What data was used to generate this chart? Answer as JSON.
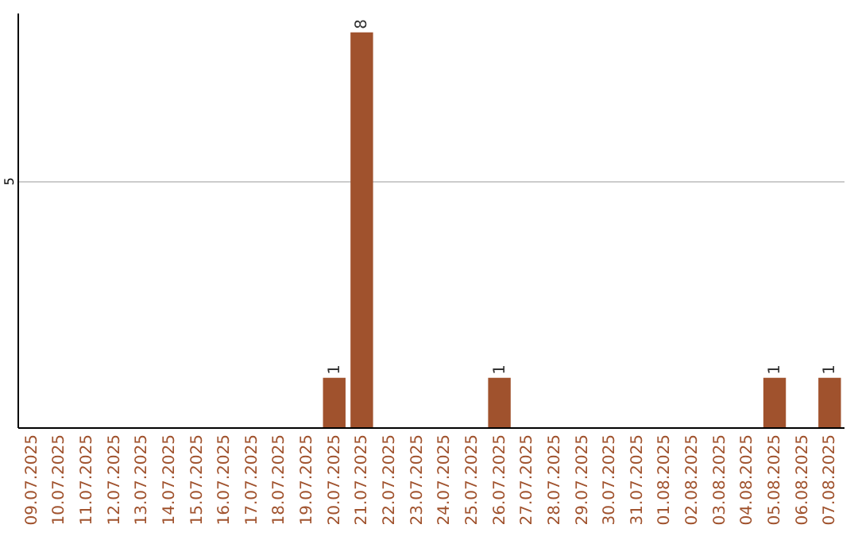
{
  "chart_data": {
    "type": "bar",
    "categories": [
      "09.07.2025",
      "10.07.2025",
      "11.07.2025",
      "12.07.2025",
      "13.07.2025",
      "14.07.2025",
      "15.07.2025",
      "16.07.2025",
      "17.07.2025",
      "18.07.2025",
      "19.07.2025",
      "20.07.2025",
      "21.07.2025",
      "22.07.2025",
      "23.07.2025",
      "24.07.2025",
      "25.07.2025",
      "26.07.2025",
      "27.07.2025",
      "28.07.2025",
      "29.07.2025",
      "30.07.2025",
      "31.07.2025",
      "01.08.2025",
      "02.08.2025",
      "03.08.2025",
      "04.08.2025",
      "05.08.2025",
      "06.08.2025",
      "07.08.2025"
    ],
    "values": [
      0,
      0,
      0,
      0,
      0,
      0,
      0,
      0,
      0,
      0,
      0,
      1,
      8,
      0,
      0,
      0,
      0,
      1,
      0,
      0,
      0,
      0,
      0,
      0,
      0,
      0,
      0,
      1,
      0,
      1
    ],
    "value_labels": [
      null,
      null,
      null,
      null,
      null,
      null,
      null,
      null,
      null,
      null,
      null,
      "1",
      "8",
      null,
      null,
      null,
      null,
      "1",
      null,
      null,
      null,
      null,
      null,
      null,
      null,
      null,
      null,
      "1",
      null,
      "1"
    ],
    "color": "#a0522d",
    "ylim": [
      0,
      8.4
    ],
    "yticks": [
      5
    ],
    "grid": "y"
  }
}
